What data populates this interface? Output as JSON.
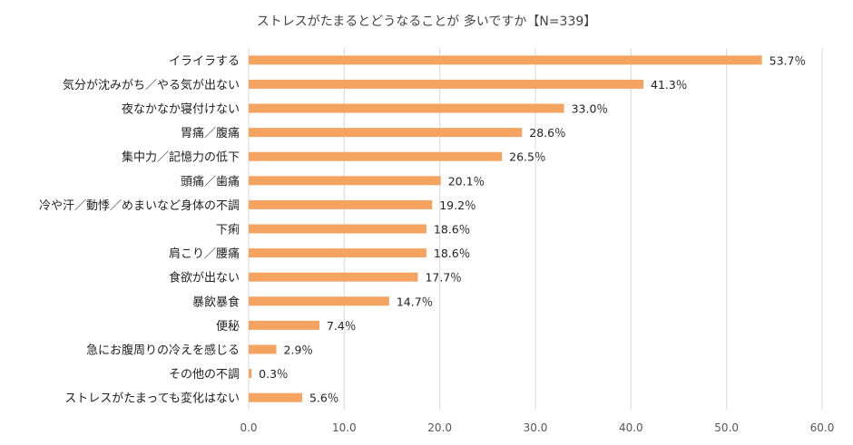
{
  "chart_data": {
    "type": "bar",
    "orientation": "horizontal",
    "title": "ストレスがたまるとどうなることが 多いですか【N=339】",
    "categories": [
      "イライラする",
      "気分が沈みがち／やる気が出ない",
      "夜なかなか寝付けない",
      "胃痛／腹痛",
      "集中力／記憶力の低下",
      "頭痛／歯痛",
      "冷や汗／動悸／めまいなど身体の不調",
      "下痢",
      "肩こり／腰痛",
      "食欲が出ない",
      "暴飲暴食",
      "便秘",
      "急にお腹周りの冷えを感じる",
      "その他の不調",
      "ストレスがたまっても変化はない"
    ],
    "values": [
      53.7,
      41.3,
      33.0,
      28.6,
      26.5,
      20.1,
      19.2,
      18.6,
      18.6,
      17.7,
      14.7,
      7.4,
      2.9,
      0.3,
      5.6
    ],
    "value_labels": [
      "53.7％",
      "41.3％",
      "33.0％",
      "28.6％",
      "26.5％",
      "20.1％",
      "19.2％",
      "18.6％",
      "18.6％",
      "17.7％",
      "14.7％",
      "7.4％",
      "2.9％",
      "0.3％",
      "5.6％"
    ],
    "xlim": [
      0,
      60
    ],
    "ticks": [
      0,
      10,
      20,
      30,
      40,
      50,
      60
    ],
    "tick_labels": [
      "0.0",
      "10.0",
      "20.0",
      "30.0",
      "40.0",
      "50.0",
      "60.0"
    ],
    "grid": true,
    "legend": "none",
    "bar_color": "#f4a460"
  }
}
